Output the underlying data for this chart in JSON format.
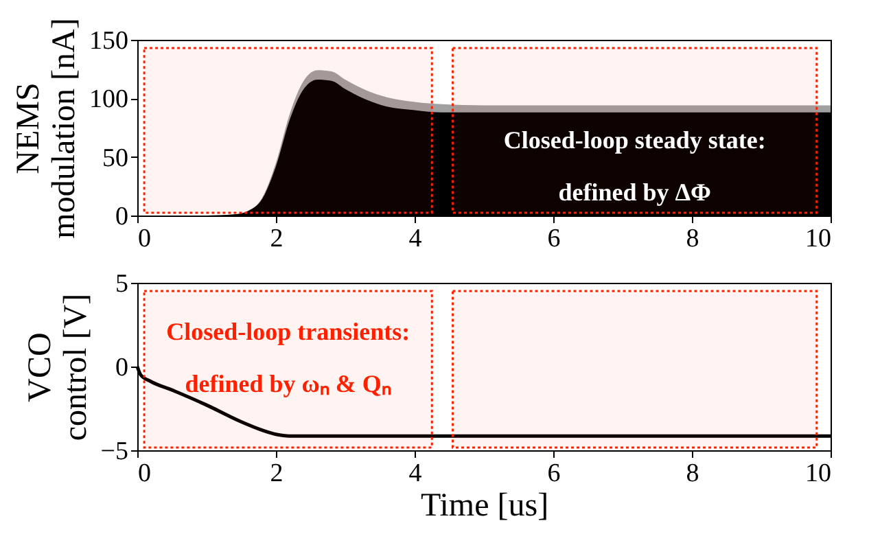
{
  "chart_data": [
    {
      "type": "area",
      "ylabel": "NEMS modulation [nA]",
      "x": [
        0,
        1,
        1.4,
        1.6,
        1.8,
        2.0,
        2.2,
        2.4,
        2.6,
        2.8,
        3.0,
        3.3,
        3.6,
        4.0,
        4.4,
        5,
        10
      ],
      "series": [
        {
          "color": "#a0a0a0",
          "values": [
            0,
            0,
            1,
            4,
            15,
            45,
            87,
            115,
            124,
            123,
            116,
            107,
            101,
            97,
            95,
            94,
            94
          ]
        },
        {
          "color": "#000000",
          "values": [
            0,
            0,
            1,
            4,
            14,
            42,
            82,
            108,
            116,
            115,
            108,
            99,
            93,
            90,
            88,
            88,
            88
          ]
        }
      ],
      "xlim": [
        0,
        10
      ],
      "xticks": [
        0,
        2,
        4,
        6,
        8,
        10
      ],
      "ylim": [
        0,
        150
      ],
      "yticks": [
        0,
        50,
        100,
        150
      ],
      "bands": [
        {
          "axis": "x",
          "from": 0.1,
          "to": 4.25,
          "color": "#ff2000"
        },
        {
          "axis": "x",
          "from": 4.55,
          "to": 9.8,
          "color": "#ff2000",
          "label": "Closed-loop steady state:\ndefined by ΔΦ"
        }
      ]
    },
    {
      "type": "line",
      "xlabel": "Time [us]",
      "ylabel": "VCO control [V]",
      "x": [
        0,
        0.05,
        0.2,
        0.5,
        1,
        1.5,
        1.8,
        2.0,
        2.2,
        2.5,
        10
      ],
      "series": [
        {
          "color": "#000000",
          "values": [
            0,
            -0.5,
            -0.9,
            -1.4,
            -2.3,
            -3.3,
            -3.8,
            -4.05,
            -4.15,
            -4.15,
            -4.15
          ]
        }
      ],
      "xlim": [
        0,
        10
      ],
      "xticks": [
        0,
        2,
        4,
        6,
        8,
        10
      ],
      "ylim": [
        -5,
        5
      ],
      "yticks": [
        -5,
        0,
        5
      ],
      "bands": [
        {
          "axis": "x",
          "from": 0.1,
          "to": 4.25,
          "color": "#ff2000",
          "label": "Closed-loop transients:\ndefined by ωₙ & Qₙ"
        },
        {
          "axis": "x",
          "from": 4.55,
          "to": 9.8,
          "color": "#ff2000"
        }
      ]
    }
  ]
}
